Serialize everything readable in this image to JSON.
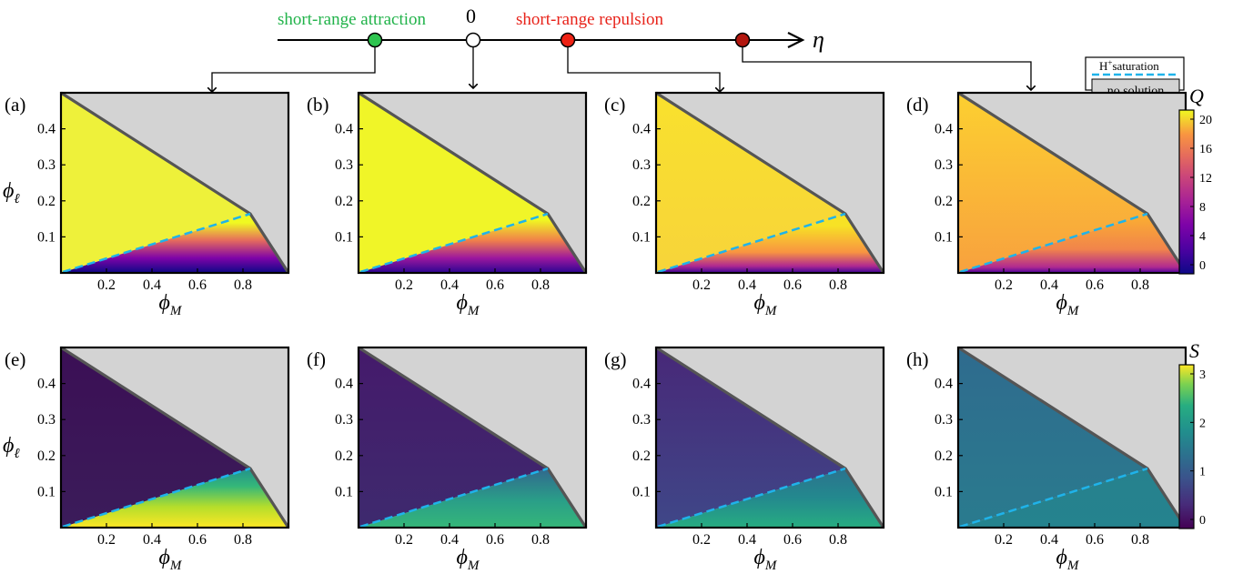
{
  "header": {
    "label_attraction": "short-range attraction",
    "label_zero": "0",
    "label_repulsion": "short-range repulsion",
    "axis_symbol": "η",
    "markers": [
      {
        "name": "attraction",
        "color": "#2ec44f"
      },
      {
        "name": "zero",
        "color": "#ffffff"
      },
      {
        "name": "repulsion",
        "color": "#ee2214"
      },
      {
        "name": "strong-repulsion",
        "color": "#b3170f"
      }
    ]
  },
  "legend": {
    "saturation_label": "H⁺saturation",
    "saturation_sup": "+",
    "saturation_word": "saturation",
    "saturation_prefix": "H",
    "no_solution_label": "no solution",
    "dash_color": "#1fb3ea",
    "gray_color": "#d3d3d3"
  },
  "colorbars": {
    "top": {
      "symbol": "Q",
      "ticks": [
        "20",
        "16",
        "12",
        "8",
        "4",
        "0"
      ],
      "colormap": "plasma"
    },
    "bottom": {
      "symbol": "S",
      "ticks": [
        "3",
        "2",
        "1",
        "0"
      ],
      "colormap": "viridis"
    }
  },
  "axes": {
    "x_ticks": [
      "0.2",
      "0.4",
      "0.6",
      "0.8"
    ],
    "y_ticks": [
      "0.4",
      "0.3",
      "0.2",
      "0.1"
    ],
    "x_label_main": "ϕ",
    "x_label_sub": "M",
    "y_label_main": "ϕ",
    "y_label_sub": "ℓ"
  },
  "panels": [
    {
      "tag": "(a)",
      "map": "plasma",
      "variant": 0
    },
    {
      "tag": "(b)",
      "map": "plasma",
      "variant": 1
    },
    {
      "tag": "(c)",
      "map": "plasma",
      "variant": 2
    },
    {
      "tag": "(d)",
      "map": "plasma",
      "variant": 3
    },
    {
      "tag": "(e)",
      "map": "viridis",
      "variant": 0
    },
    {
      "tag": "(f)",
      "map": "viridis",
      "variant": 1
    },
    {
      "tag": "(g)",
      "map": "viridis",
      "variant": 2
    },
    {
      "tag": "(h)",
      "map": "viridis",
      "variant": 3
    }
  ]
}
